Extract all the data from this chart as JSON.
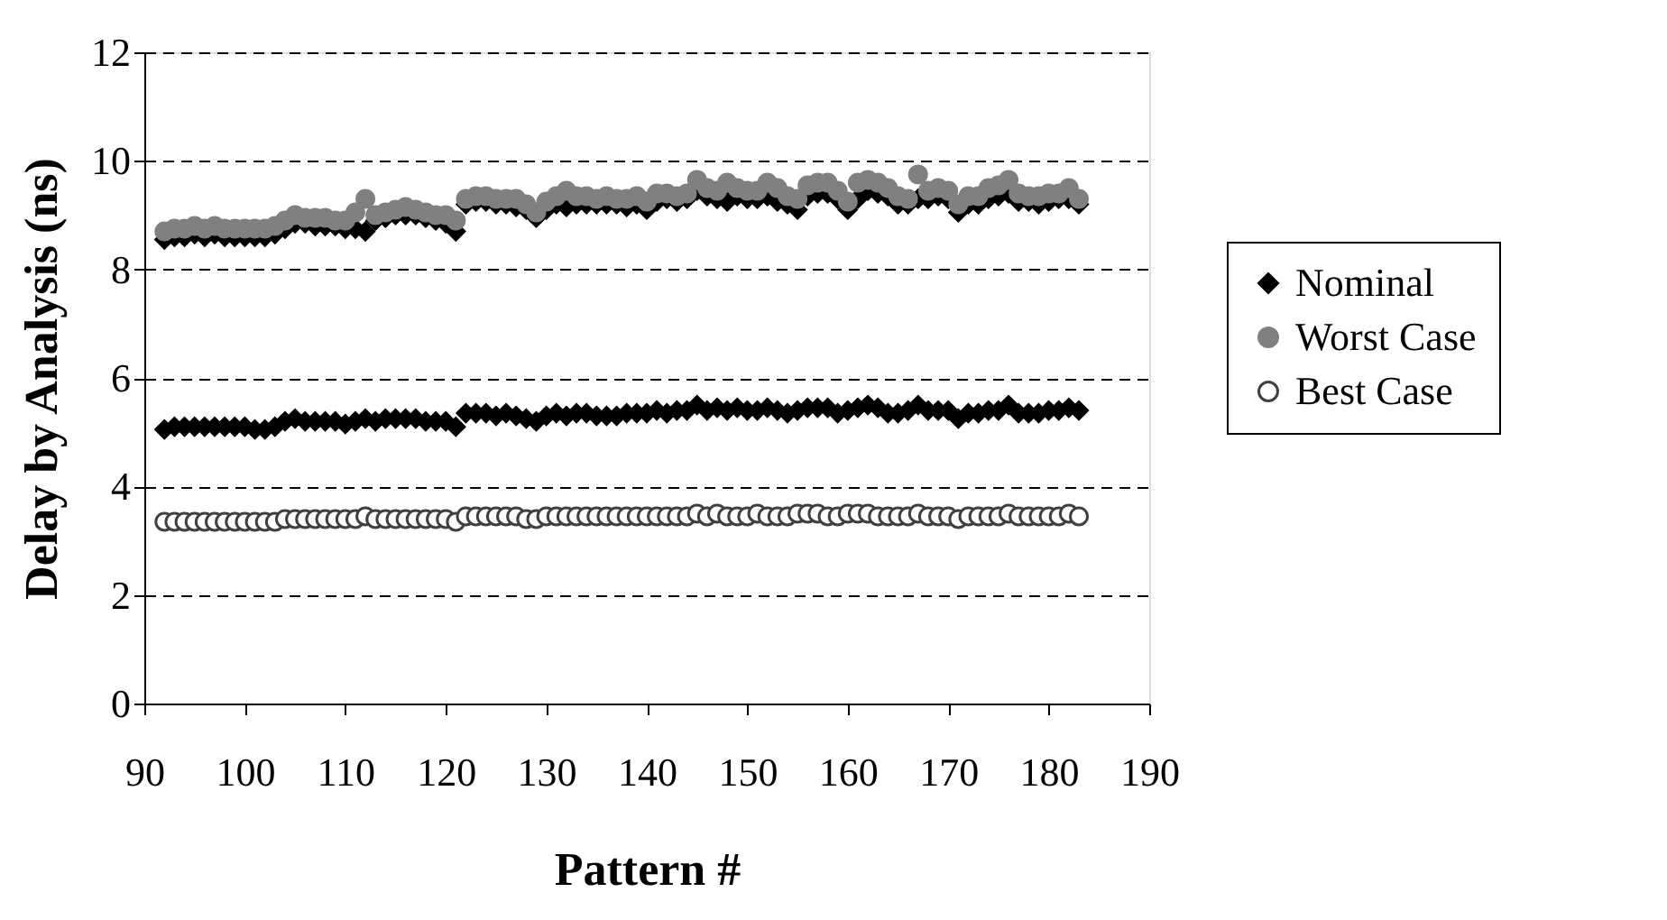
{
  "chart_data": {
    "type": "scatter",
    "xlabel": "Pattern #",
    "ylabel": "Delay by Analysis (ns)",
    "x": [
      92,
      93,
      94,
      95,
      96,
      97,
      98,
      99,
      100,
      101,
      102,
      103,
      104,
      105,
      106,
      107,
      108,
      109,
      110,
      111,
      112,
      113,
      114,
      115,
      116,
      117,
      118,
      119,
      120,
      121,
      122,
      123,
      124,
      125,
      126,
      127,
      128,
      129,
      130,
      131,
      132,
      133,
      134,
      135,
      136,
      137,
      138,
      139,
      140,
      141,
      142,
      143,
      144,
      145,
      146,
      147,
      148,
      149,
      150,
      151,
      152,
      153,
      154,
      155,
      156,
      157,
      158,
      159,
      160,
      161,
      162,
      163,
      164,
      165,
      166,
      167,
      168,
      169,
      170,
      171,
      172,
      173,
      174,
      175,
      176,
      177,
      178,
      179,
      180,
      181,
      182,
      183
    ],
    "series": [
      {
        "name": "Nominal",
        "color": "#000000",
        "marker": "diamond",
        "x": [
          92,
          93,
          94,
          95,
          96,
          97,
          98,
          99,
          100,
          101,
          102,
          103,
          104,
          105,
          106,
          107,
          108,
          109,
          110,
          111,
          112,
          113,
          114,
          115,
          116,
          117,
          118,
          119,
          120,
          121,
          122,
          123,
          124,
          125,
          126,
          127,
          128,
          129,
          130,
          131,
          132,
          133,
          134,
          135,
          136,
          137,
          138,
          139,
          140,
          141,
          142,
          143,
          144,
          145,
          146,
          147,
          148,
          149,
          150,
          151,
          152,
          153,
          154,
          155,
          156,
          157,
          158,
          159,
          160,
          161,
          162,
          163,
          164,
          165,
          166,
          167,
          168,
          169,
          170,
          171,
          172,
          173,
          174,
          175,
          176,
          177,
          178,
          179,
          180,
          181,
          182,
          183,
          92,
          93,
          94,
          95,
          96,
          97,
          98,
          99,
          100,
          101,
          102,
          103,
          104,
          105,
          106,
          107,
          108,
          109,
          110,
          111,
          112,
          113,
          114,
          115,
          116,
          117,
          118,
          119,
          120,
          121,
          122,
          123,
          124,
          125,
          126,
          127,
          128,
          129,
          130,
          131,
          132,
          133,
          134,
          135,
          136,
          137,
          138,
          139,
          140,
          141,
          142,
          143,
          144,
          145,
          146,
          147,
          148,
          149,
          150,
          151,
          152,
          153,
          154,
          155,
          156,
          157,
          158,
          159,
          160,
          161,
          162,
          163,
          164,
          165,
          166,
          167,
          168,
          169,
          170,
          171,
          172,
          173,
          174,
          175,
          176,
          177,
          178,
          179,
          180,
          181,
          182,
          183
        ],
        "values": [
          8.55,
          8.6,
          8.6,
          8.65,
          8.6,
          8.65,
          8.6,
          8.6,
          8.6,
          8.6,
          8.6,
          8.65,
          8.75,
          8.85,
          8.85,
          8.8,
          8.8,
          8.8,
          8.75,
          8.75,
          8.7,
          8.9,
          8.95,
          9.0,
          9.0,
          9.0,
          8.95,
          8.9,
          8.85,
          8.7,
          9.2,
          9.25,
          9.25,
          9.2,
          9.2,
          9.15,
          9.1,
          8.95,
          9.1,
          9.2,
          9.15,
          9.2,
          9.2,
          9.2,
          9.2,
          9.2,
          9.15,
          9.2,
          9.1,
          9.25,
          9.3,
          9.25,
          9.3,
          9.45,
          9.35,
          9.3,
          9.25,
          9.35,
          9.3,
          9.3,
          9.35,
          9.25,
          9.2,
          9.1,
          9.35,
          9.4,
          9.4,
          9.3,
          9.1,
          9.3,
          9.45,
          9.4,
          9.35,
          9.2,
          9.2,
          9.3,
          9.3,
          9.35,
          9.3,
          9.05,
          9.2,
          9.2,
          9.3,
          9.35,
          9.4,
          9.25,
          9.25,
          9.2,
          9.25,
          9.3,
          9.3,
          9.2,
          5.05,
          5.1,
          5.1,
          5.1,
          5.1,
          5.1,
          5.1,
          5.1,
          5.1,
          5.05,
          5.05,
          5.1,
          5.2,
          5.25,
          5.2,
          5.2,
          5.2,
          5.2,
          5.15,
          5.2,
          5.25,
          5.2,
          5.25,
          5.25,
          5.25,
          5.25,
          5.2,
          5.2,
          5.2,
          5.1,
          5.35,
          5.35,
          5.35,
          5.3,
          5.35,
          5.3,
          5.25,
          5.2,
          5.3,
          5.35,
          5.3,
          5.35,
          5.35,
          5.3,
          5.3,
          5.3,
          5.35,
          5.35,
          5.35,
          5.4,
          5.35,
          5.4,
          5.4,
          5.5,
          5.4,
          5.45,
          5.4,
          5.45,
          5.4,
          5.4,
          5.45,
          5.4,
          5.35,
          5.4,
          5.45,
          5.45,
          5.45,
          5.35,
          5.4,
          5.45,
          5.5,
          5.45,
          5.35,
          5.35,
          5.4,
          5.5,
          5.4,
          5.4,
          5.4,
          5.25,
          5.35,
          5.35,
          5.4,
          5.4,
          5.5,
          5.35,
          5.35,
          5.35,
          5.4,
          5.4,
          5.45,
          5.4
        ]
      },
      {
        "name": "Worst Case",
        "color": "#808080",
        "marker": "circle",
        "values": [
          8.7,
          8.75,
          8.75,
          8.8,
          8.75,
          8.8,
          8.75,
          8.75,
          8.75,
          8.75,
          8.75,
          8.8,
          8.9,
          9.0,
          8.95,
          8.95,
          8.95,
          8.9,
          8.9,
          9.05,
          9.3,
          9.0,
          9.05,
          9.1,
          9.15,
          9.1,
          9.05,
          9.0,
          9.0,
          8.9,
          9.3,
          9.35,
          9.35,
          9.3,
          9.3,
          9.3,
          9.2,
          9.05,
          9.25,
          9.35,
          9.45,
          9.35,
          9.35,
          9.3,
          9.35,
          9.3,
          9.3,
          9.35,
          9.25,
          9.4,
          9.4,
          9.35,
          9.4,
          9.65,
          9.5,
          9.45,
          9.6,
          9.5,
          9.45,
          9.45,
          9.6,
          9.5,
          9.35,
          9.3,
          9.55,
          9.6,
          9.6,
          9.45,
          9.25,
          9.6,
          9.65,
          9.6,
          9.5,
          9.35,
          9.3,
          9.75,
          9.45,
          9.5,
          9.45,
          9.2,
          9.35,
          9.35,
          9.5,
          9.55,
          9.65,
          9.4,
          9.35,
          9.35,
          9.4,
          9.4,
          9.5,
          9.3
        ]
      },
      {
        "name": "Best Case",
        "color": "#ffffff",
        "marker": "circle",
        "values": [
          3.35,
          3.35,
          3.35,
          3.35,
          3.35,
          3.35,
          3.35,
          3.35,
          3.35,
          3.35,
          3.35,
          3.35,
          3.4,
          3.4,
          3.4,
          3.4,
          3.4,
          3.4,
          3.4,
          3.4,
          3.45,
          3.4,
          3.4,
          3.4,
          3.4,
          3.4,
          3.4,
          3.4,
          3.4,
          3.35,
          3.45,
          3.45,
          3.45,
          3.45,
          3.45,
          3.45,
          3.4,
          3.4,
          3.45,
          3.45,
          3.45,
          3.45,
          3.45,
          3.45,
          3.45,
          3.45,
          3.45,
          3.45,
          3.45,
          3.45,
          3.45,
          3.45,
          3.45,
          3.5,
          3.45,
          3.5,
          3.45,
          3.45,
          3.45,
          3.5,
          3.45,
          3.45,
          3.45,
          3.5,
          3.5,
          3.5,
          3.45,
          3.45,
          3.5,
          3.5,
          3.5,
          3.45,
          3.45,
          3.45,
          3.45,
          3.5,
          3.45,
          3.45,
          3.45,
          3.4,
          3.45,
          3.45,
          3.45,
          3.45,
          3.5,
          3.45,
          3.45,
          3.45,
          3.45,
          3.45,
          3.5,
          3.45
        ]
      }
    ],
    "xlim": [
      90,
      190
    ],
    "xticks": [
      90,
      100,
      110,
      120,
      130,
      140,
      150,
      160,
      170,
      180,
      190
    ],
    "ylim": [
      0,
      12
    ],
    "yticks": [
      0,
      2,
      4,
      6,
      8,
      10,
      12
    ],
    "grid": "y",
    "legend": "right"
  }
}
